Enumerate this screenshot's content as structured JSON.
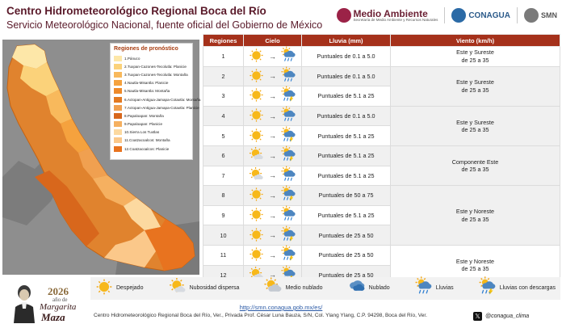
{
  "header": {
    "title": "Centro Hidrometeorológico Regional Boca del Río",
    "subtitle": "Servicio Meteorológico Nacional, fuente oficial del Gobierno de México"
  },
  "logos": {
    "medio_ambiente": "Medio Ambiente",
    "medio_ambiente_small": "Secretaría de Medio Ambiente y Recursos Naturales",
    "conagua": "CONAGUA",
    "smn": "SMN"
  },
  "map_legend": {
    "title": "Regiones de pronóstico",
    "items": [
      {
        "label": "1.Pánuco",
        "color": "#fde7a8"
      },
      {
        "label": "2.Tuxpan-Cazones-Tecolutla: Planicie",
        "color": "#fbd27a"
      },
      {
        "label": "3.Tuxpan-Cazones-Tecolutla: Montaña",
        "color": "#f8b95c"
      },
      {
        "label": "4.Nautla-Misantla: Planicie",
        "color": "#f5a23e"
      },
      {
        "label": "5.Nautla-Misantla: Montaña",
        "color": "#ee8a2a"
      },
      {
        "label": "6.Actopan-Antigua-Jamapa-Cotaxtla: Montaña",
        "color": "#e37a22"
      },
      {
        "label": "7.Actopan-Antigua-Jamapa-Cotaxtla: Planicie",
        "color": "#f0a050"
      },
      {
        "label": "8.Papaloapan: Montaña",
        "color": "#d8671c"
      },
      {
        "label": "9.Papaloapan: Planicie",
        "color": "#f5b060"
      },
      {
        "label": "10.Sierra Los Tuxtlas",
        "color": "#fcd9a0"
      },
      {
        "label": "11.Coatzacoalcos: Montaña",
        "color": "#fbc88a"
      },
      {
        "label": "12.Coatzacoalcos: Planicie",
        "color": "#e8731f"
      }
    ]
  },
  "table": {
    "headers": [
      "Regiones",
      "Cielo",
      "Lluvia (mm)",
      "Viento (km/h)"
    ],
    "rows": [
      {
        "region": "1",
        "sky_from": "despejado",
        "sky_to": "lluvias",
        "rain": "Puntuales de 0.1 a 5.0"
      },
      {
        "region": "2",
        "sky_from": "despejado",
        "sky_to": "lluvias",
        "rain": "Puntuales de 0.1 a 5.0"
      },
      {
        "region": "3",
        "sky_from": "despejado",
        "sky_to": "lluvias-descargas",
        "rain": "Puntuales de 5.1 a 25"
      },
      {
        "region": "4",
        "sky_from": "despejado",
        "sky_to": "lluvias",
        "rain": "Puntuales de 0.1 a 5.0"
      },
      {
        "region": "5",
        "sky_from": "despejado",
        "sky_to": "lluvias-descargas",
        "rain": "Puntuales de 5.1 a 25"
      },
      {
        "region": "6",
        "sky_from": "nubosidad-dispersa",
        "sky_to": "lluvias-descargas",
        "rain": "Puntuales de 5.1 a 25"
      },
      {
        "region": "7",
        "sky_from": "nubosidad-dispersa",
        "sky_to": "lluvias",
        "rain": "Puntuales de 5.1 a 25"
      },
      {
        "region": "8",
        "sky_from": "despejado",
        "sky_to": "lluvias-descargas",
        "rain": "Puntuales de 50 a 75"
      },
      {
        "region": "9",
        "sky_from": "despejado",
        "sky_to": "lluvias",
        "rain": "Puntuales de 5.1 a 25"
      },
      {
        "region": "10",
        "sky_from": "despejado",
        "sky_to": "lluvias-descargas",
        "rain": "Puntuales de 25 a 50"
      },
      {
        "region": "11",
        "sky_from": "despejado",
        "sky_to": "lluvias-descargas",
        "rain": "Puntuales de 25 a 50"
      },
      {
        "region": "12",
        "sky_from": "nubosidad-dispersa",
        "sky_to": "lluvias-descargas",
        "rain": "Puntuales de 25 a 50"
      }
    ],
    "winds": [
      {
        "line1": "Este y Sureste",
        "line2": "de 25 a 35",
        "rows": 1
      },
      {
        "line1": "Este y Sureste",
        "line2": "de 25 a 35",
        "rows": 2
      },
      {
        "line1": "Este y Sureste",
        "line2": "de 25 a 35",
        "rows": 2
      },
      {
        "line1": "Componente Este",
        "line2": "de 25 a 35",
        "rows": 2
      },
      {
        "line1": "Este y Noreste",
        "line2": "de 25 a 35",
        "rows": 3
      },
      {
        "line1": "Este y Noreste",
        "line2": "de 25 a 35",
        "rows": 2
      }
    ]
  },
  "sky_legend": [
    {
      "icon": "despejado",
      "label": "Despejado"
    },
    {
      "icon": "nubosidad-dispersa",
      "label": "Nubosidad dispersa"
    },
    {
      "icon": "medio-nublado",
      "label": "Medio nublado"
    },
    {
      "icon": "nublado",
      "label": "Nublado"
    },
    {
      "icon": "lluvias",
      "label": "Lluvias"
    },
    {
      "icon": "lluvias-descargas",
      "label": "Lluvias con descargas"
    }
  ],
  "year": {
    "number": "2026",
    "anio": "año de",
    "name1": "Margarita",
    "name2": "Maza"
  },
  "footer": {
    "url": "http://smn.conagua.gob.mx/es/",
    "address": "Centro Hidrometeorológico Regional Boca del Río, Ver., Privada Prof. César Luna Bauza, S/N, Col. Ylang Ylang, C.P. 94298, Boca del Río, Ver.",
    "handle": "@conagua_clima"
  },
  "colors": {
    "header_text": "#5a1a2a",
    "table_header": "#a5311b",
    "map_border": "#d96b1f"
  }
}
